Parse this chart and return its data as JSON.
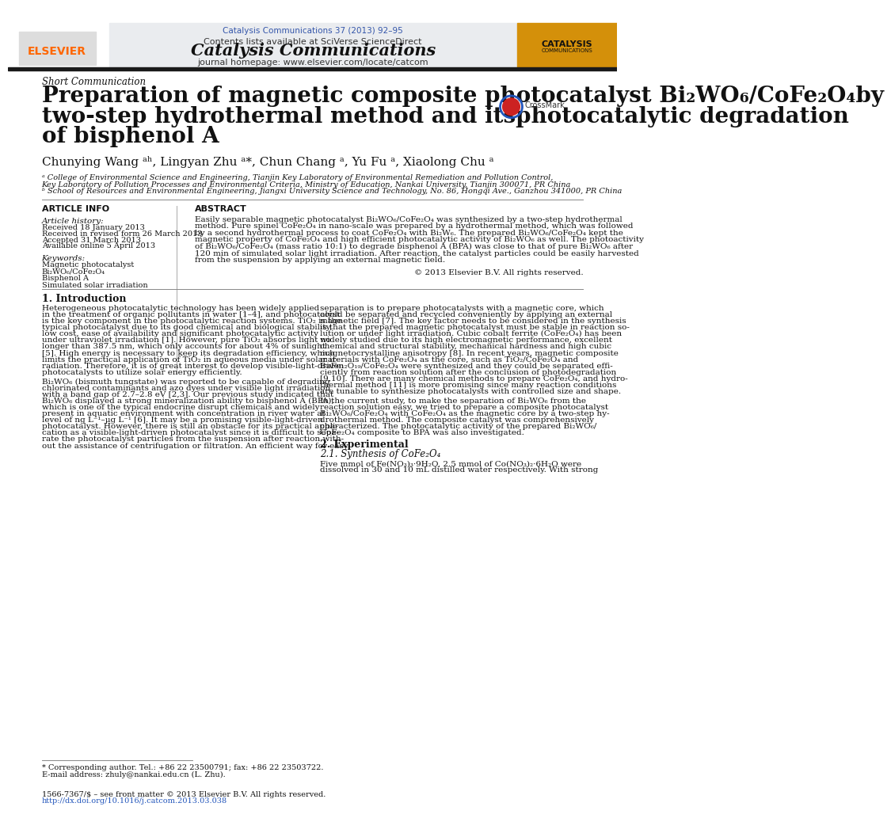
{
  "page_color": "#ffffff",
  "top_citation": "Catalysis Communications 37 (2013) 92–95",
  "top_citation_color": "#3355aa",
  "journal_title": "Catalysis Communications",
  "contents_line": "Contents lists available at SciVerse ScienceDirect",
  "homepage_line": "journal homepage: www.elsevier.com/locate/catcom",
  "elsevier_color": "#ff6600",
  "section_label": "Short Communication",
  "paper_title_line1": "Preparation of magnetic composite photocatalyst Bi₂WO₆/CoFe₂O₄by",
  "paper_title_line2": "two-step hydrothermal method and itsphotocatalytic degradation",
  "paper_title_line3": "of bisphenol A",
  "authors_line": "Chunying Wang ᵃʰ, Lingyan Zhu ᵃ*, Chun Chang ᵃ, Yu Fu ᵃ, Xiaolong Chu ᵃ",
  "affiliation_a": "ᵃ College of Environmental Science and Engineering, Tianjin Key Laboratory of Environmental Remediation and Pollution Control,",
  "affiliation_a2": "Key Laboratory of Pollution Processes and Environmental Criteria, Ministry of Education, Nankai University, Tianjin 300071, PR China",
  "affiliation_b": "ᵇ School of Resources and Environmental Engineering, Jiangxi University Science and Technology, No. 86, Hongqi Ave., Ganzhou 341000, PR China",
  "article_info_title": "ARTICLE INFO",
  "abstract_title": "ABSTRACT",
  "article_history_label": "Article history:",
  "received_line": "Received 18 January 2013",
  "revised_line": "Received in revised form 26 March 2013",
  "accepted_line": "Accepted 31 March 2013",
  "available_line": "Available online 5 April 2013",
  "keywords_label": "Keywords:",
  "keyword1": "Magnetic photocatalyst",
  "keyword2": "Bi₂WO₆/CoFe₂O₄",
  "keyword3": "Bisphenol A",
  "keyword4": "Simulated solar irradiation",
  "abstract_lines": [
    "Easily separable magnetic photocatalyst Bi₂WO₆/CoFe₂O₄ was synthesized by a two-step hydrothermal",
    "method. Pure spinel CoFe₂O₄ in nano-scale was prepared by a hydrothermal method, which was followed",
    "by a second hydrothermal process to coat CoFe₂O₄ with Bi₂W₆. The prepared Bi₂WO₆/CoFe₂O₄ kept the",
    "magnetic property of CoFe₂O₄ and high efficient photocatalytic activity of Bi₂WO₆ as well. The photoactivity",
    "of Bi₂WO₆/CoFe₂O₄ (mass ratio 10:1) to degrade bisphenol A (BPA) was close to that of pure Bi₂WO₆ after",
    "120 min of simulated solar light irradiation. After reaction, the catalyst particles could be easily harvested",
    "from the suspension by applying an external magnetic field."
  ],
  "copyright_line": "© 2013 Elsevier B.V. All rights reserved.",
  "intro_title": "1. Introduction",
  "col1_para1_lines": [
    "Heterogeneous photocatalytic technology has been widely applied",
    "in the treatment of organic pollutants in water [1–4], and photocatalyst",
    "is the key component in the photocatalytic reaction systems. TiO₂ is the",
    "typical photocatalyst due to its good chemical and biological stability,",
    "low cost, ease of availability and significant photocatalytic activity",
    "under ultraviolet irradiation [1]. However, pure TiO₂ absorbs light no",
    "longer than 387.5 nm, which only accounts for about 4% of sunlight",
    "[5]. High energy is necessary to keep its degradation efficiency, which",
    "limits the practical application of TiO₂ in aqueous media under solar ir-",
    "radiation. Therefore, it is of great interest to develop visible-light-driven",
    "photocatalysts to utilize solar energy efficiently."
  ],
  "col1_para2_lines": [
    "Bi₂WO₆ (bismuth tungstate) was reported to be capable of degrading",
    "chlorinated contaminants and azo dyes under visible light irradiation",
    "with a band gap of 2.7–2.8 eV [2,3]. Our previous study indicated that",
    "Bi₂WO₆ displayed a strong mineralization ability to bisphenol A (BPA),",
    "which is one of the typical endocrine disrupt chemicals and widely",
    "present in aquatic environment with concentration in river water at",
    "level of ng L⁻¹–μg L⁻¹ [6]. It may be a promising visible-light-driven",
    "photocatalyst. However, there is still an obstacle for its practical appli-",
    "cation as a visible-light-driven photocatalyst since it is difficult to sepa-",
    "rate the photocatalyst particles from the suspension after reaction with-",
    "out the assistance of centrifugation or filtration. An efficient way for easy"
  ],
  "col2_para1_lines": [
    "separation is to prepare photocatalysts with a magnetic core, which",
    "could be separated and recycled conveniently by applying an external",
    "magnetic field [7]. The key factor needs to be considered in the synthesis",
    "is that the prepared magnetic photocatalyst must be stable in reaction so-",
    "lution or under light irradiation. Cubic cobalt ferrite (CoFe₂O₄) has been",
    "widely studied due to its high electromagnetic performance, excellent",
    "chemical and structural stability, mechanical hardness and high cubic",
    "magnetocrystalline anisotropy [8]. In recent years, magnetic composite",
    "materials with CoFe₂O₄ as the core, such as TiO₂/CoFe₂O₄ and",
    "BaFe₁₂O₁₉/CoFe₂O₄ were synthesized and they could be separated effi-",
    "ciently from reaction solution after the conclusion of photodegradation",
    "[9,10]. There are many chemical methods to prepare CoFe₂O₄, and hydro-",
    "thermal method [11] is more promising since many reaction conditions",
    "are tunable to synthesize photocatalysts with controlled size and shape."
  ],
  "col2_para2_lines": [
    "In the current study, to make the separation of Bi₂WO₆ from the",
    "reaction solution easy, we tried to prepare a composite photocatalyst",
    "Bi₂WO₆/CoFe₂O₄ with CoFe₂O₄ as the magnetic core by a two-step hy-",
    "drothermal method. The composite catalyst was comprehensively",
    "characterized. The photocatalytic activity of the prepared Bi₂WO₆/",
    "CoFe₂O₄ composite to BPA was also investigated."
  ],
  "section2_title": "2. Experimental",
  "section21_title": "2.1. Synthesis of CoFe₂O₄",
  "section21_lines": [
    "Five mmol of Fe(NO₃)₃·9H₂O, 2.5 mmol of Co(NO₃)₂·6H₂O were",
    "dissolved in 30 and 10 mL distilled water respectively. With strong"
  ],
  "footnote_star": "* Corresponding author. Tel.: +86 22 23500791; fax: +86 22 23503722.",
  "footnote_email": "E-mail address: zhuly@nankai.edu.cn (L. Zhu).",
  "footer_issn": "1566-7367/$ – see front matter © 2013 Elsevier B.V. All rights reserved.",
  "footer_doi": "http://dx.doi.org/10.1016/j.catcom.2013.03.038"
}
